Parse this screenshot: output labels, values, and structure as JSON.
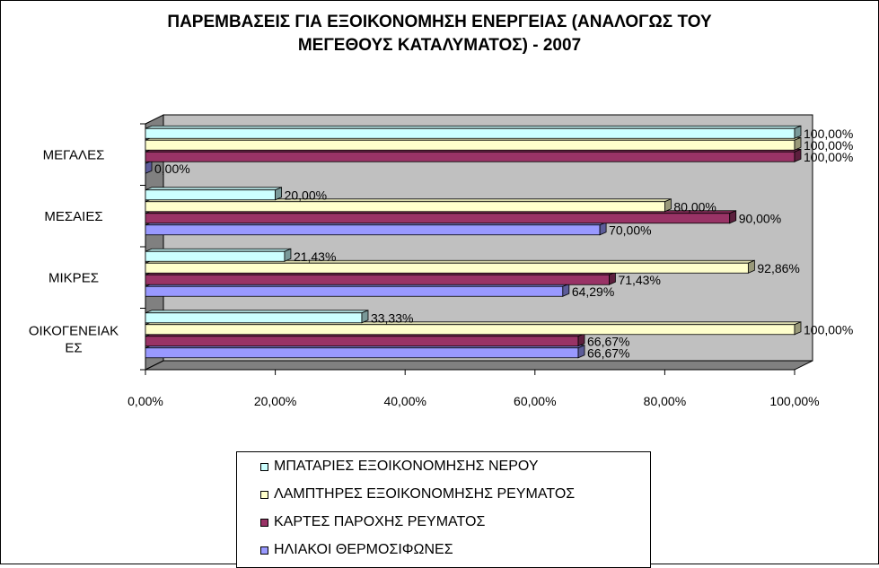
{
  "chart_data": {
    "type": "bar",
    "orientation": "horizontal",
    "title": "ΠΑΡΕΜΒΑΣΕΙΣ ΓΙΑ ΕΞΟΙΚΟΝΟΜΗΣΗ ΕΝΕΡΓΕΙΑΣ (ΑΝΑΛΟΓΩΣ ΤΟΥ ΜΕΓΕΘΟΥΣ ΚΑΤΑΛΥΜΑΤΟΣ) - 2007",
    "title_lines": [
      "ΠΑΡΕΜΒΑΣΕΙΣ ΓΙΑ ΕΞΟΙΚΟΝΟΜΗΣΗ ΕΝΕΡΓΕΙΑΣ (ΑΝΑΛΟΓΩΣ ΤΟΥ",
      "ΜΕΓΕΘΟΥΣ ΚΑΤΑΛΥΜΑΤΟΣ) - 2007"
    ],
    "categories": [
      "ΜΕΓΑΛΕΣ",
      "ΜΕΣΑΙΕΣ",
      "ΜΙΚΡΕΣ",
      "ΟΙΚΟΓΕΝΕΙΑΚΕΣ"
    ],
    "category_lines": [
      [
        "ΜΕΓΑΛΕΣ"
      ],
      [
        "ΜΕΣΑΙΕΣ"
      ],
      [
        "ΜΙΚΡΕΣ"
      ],
      [
        "ΟΙΚΟΓΕΝΕΙΑΚ",
        "ΕΣ"
      ]
    ],
    "series": [
      {
        "name": "ΜΠΑΤΑΡΙΕΣ ΕΞΟΙΚΟΝΟΜΗΣΗΣ ΝΕΡΟΥ",
        "color": "#CCFFFF",
        "values": [
          100.0,
          20.0,
          21.43,
          33.33
        ],
        "labels": [
          "100,00%",
          "20,00%",
          "21,43%",
          "33,33%"
        ]
      },
      {
        "name": "ΛΑΜΠΤΗΡΕΣ ΕΞΟΙΚΟΝΟΜΗΣΗΣ ΡΕΥΜΑΤΟΣ",
        "color": "#FFFFCC",
        "values": [
          100.0,
          80.0,
          92.86,
          100.0
        ],
        "labels": [
          "100,00%",
          "80,00%",
          "92,86%",
          "100,00%"
        ]
      },
      {
        "name": "ΚΑΡΤΕΣ ΠΑΡΟΧΗΣ ΡΕΥΜΑΤΟΣ",
        "color": "#993366",
        "values": [
          100.0,
          90.0,
          71.43,
          66.67
        ],
        "labels": [
          "100,00%",
          "90,00%",
          "71,43%",
          "66,67%"
        ]
      },
      {
        "name": "ΗΛΙΑΚΟΙ ΘΕΡΜΟΣΙΦΩΝΕΣ",
        "color": "#9999FF",
        "values": [
          0.0,
          70.0,
          64.29,
          66.67
        ],
        "labels": [
          "0,00%",
          "70,00%",
          "64,29%",
          "66,67%"
        ]
      }
    ],
    "x_ticks": [
      "0,00%",
      "20,00%",
      "40,00%",
      "60,00%",
      "80,00%",
      "100,00%"
    ],
    "xlim": [
      0,
      100
    ],
    "plot_background": "#C0C0C0",
    "legend_position": "bottom",
    "grid": false,
    "style": "3d"
  }
}
